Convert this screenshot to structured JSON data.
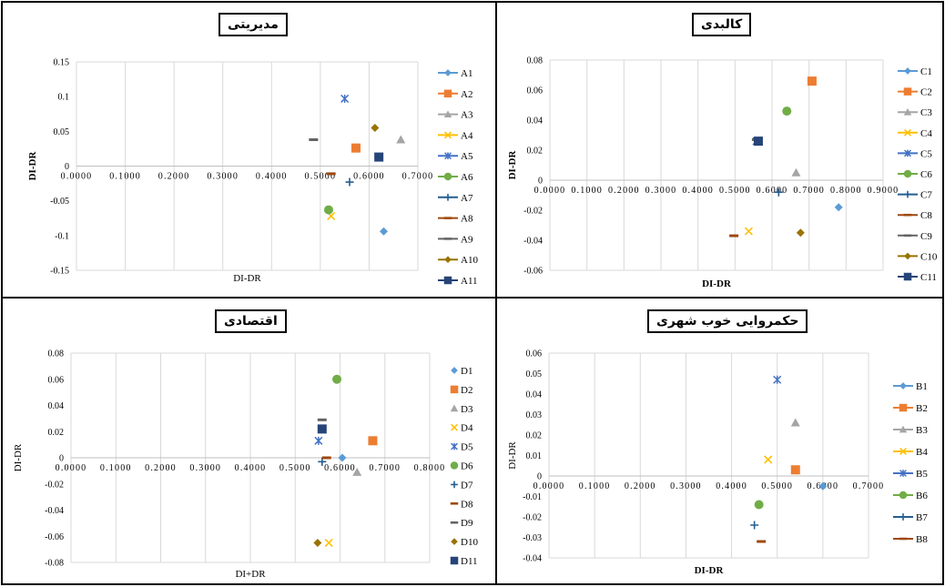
{
  "chart_data": [
    {
      "id": "tl",
      "type": "scatter",
      "title": "مدیریتی",
      "xlabel": "DI-DR",
      "ylabel": "DI-DR",
      "ylabel_bold": true,
      "xlabel_bold": false,
      "xlim": [
        0,
        0.7
      ],
      "ylim": [
        -0.15,
        0.15
      ],
      "xticks": [
        "0.0000",
        "0.1000",
        "0.2000",
        "0.3000",
        "0.4000",
        "0.5000",
        "0.6000",
        "0.7000"
      ],
      "yticks": [
        "-0.15",
        "-0.1",
        "-0.05",
        "0",
        "0.05",
        "0.1",
        "0.15"
      ],
      "grid": "vertical",
      "legend_style": "line",
      "legend_position": "right",
      "series": [
        {
          "name": "A1",
          "color": "#5B9BD5",
          "marker": "diamond",
          "x": 0.63,
          "y": -0.094
        },
        {
          "name": "A2",
          "color": "#ED7D31",
          "marker": "square",
          "x": 0.573,
          "y": 0.026
        },
        {
          "name": "A3",
          "color": "#A5A5A5",
          "marker": "triangle",
          "x": 0.665,
          "y": 0.038
        },
        {
          "name": "A4",
          "color": "#FFC000",
          "marker": "x",
          "x": 0.522,
          "y": -0.072
        },
        {
          "name": "A5",
          "color": "#4472C4",
          "marker": "asterisk",
          "x": 0.55,
          "y": 0.097
        },
        {
          "name": "A6",
          "color": "#70AD47",
          "marker": "circle",
          "x": 0.517,
          "y": -0.063
        },
        {
          "name": "A7",
          "color": "#255E91",
          "marker": "plus",
          "x": 0.56,
          "y": -0.023
        },
        {
          "name": "A8",
          "color": "#9E480E",
          "marker": "dash",
          "x": 0.522,
          "y": -0.011
        },
        {
          "name": "A9",
          "color": "#636363",
          "marker": "dash",
          "x": 0.486,
          "y": 0.038
        },
        {
          "name": "A10",
          "color": "#997300",
          "marker": "diamond",
          "x": 0.612,
          "y": 0.055
        },
        {
          "name": "A11",
          "color": "#264478",
          "marker": "square",
          "x": 0.62,
          "y": 0.013
        }
      ]
    },
    {
      "id": "tr",
      "type": "scatter",
      "title": "کالبدی",
      "xlabel": "DI-DR",
      "ylabel": "DI-DR",
      "ylabel_bold": true,
      "xlabel_bold": true,
      "xlim": [
        0,
        0.9
      ],
      "ylim": [
        -0.06,
        0.08
      ],
      "xticks": [
        "0.0000",
        "0.1000",
        "0.2000",
        "0.3000",
        "0.4000",
        "0.5000",
        "0.6000",
        "0.7000",
        "0.8000",
        "0.9000"
      ],
      "yticks": [
        "-0.06",
        "-0.04",
        "-0.02",
        "0",
        "0.02",
        "0.04",
        "0.06",
        "0.08"
      ],
      "grid": "vertical",
      "legend_style": "line",
      "legend_position": "right",
      "series": [
        {
          "name": "C1",
          "color": "#5B9BD5",
          "marker": "diamond",
          "x": 0.78,
          "y": -0.018
        },
        {
          "name": "C2",
          "color": "#ED7D31",
          "marker": "square",
          "x": 0.708,
          "y": 0.066
        },
        {
          "name": "C3",
          "color": "#A5A5A5",
          "marker": "triangle",
          "x": 0.665,
          "y": 0.005
        },
        {
          "name": "C4",
          "color": "#FFC000",
          "marker": "x",
          "x": 0.537,
          "y": -0.034
        },
        {
          "name": "C5",
          "color": "#4472C4",
          "marker": "asterisk",
          "x": 0.558,
          "y": 0.026
        },
        {
          "name": "C6",
          "color": "#70AD47",
          "marker": "circle",
          "x": 0.64,
          "y": 0.046
        },
        {
          "name": "C7",
          "color": "#255E91",
          "marker": "plus",
          "x": 0.618,
          "y": -0.008
        },
        {
          "name": "C8",
          "color": "#9E480E",
          "marker": "dash",
          "x": 0.497,
          "y": -0.037
        },
        {
          "name": "C9",
          "color": "#636363",
          "marker": "dash",
          "x": 0.558,
          "y": 0.027
        },
        {
          "name": "C10",
          "color": "#997300",
          "marker": "diamond",
          "x": 0.677,
          "y": -0.035
        },
        {
          "name": "C11",
          "color": "#264478",
          "marker": "square",
          "x": 0.563,
          "y": 0.026
        }
      ]
    },
    {
      "id": "bl",
      "type": "scatter",
      "title": "اقتصادی",
      "xlabel": "DI+DR",
      "ylabel": "DI-DR",
      "ylabel_bold": false,
      "xlabel_bold": false,
      "xlim": [
        0,
        0.8
      ],
      "ylim": [
        -0.08,
        0.08
      ],
      "xticks": [
        "0.0000",
        "0.1000",
        "0.2000",
        "0.3000",
        "0.4000",
        "0.5000",
        "0.6000",
        "0.7000",
        "0.8000"
      ],
      "yticks": [
        "-0.08",
        "-0.06",
        "-0.04",
        "-0.02",
        "0",
        "0.02",
        "0.04",
        "0.06",
        "0.08"
      ],
      "grid": "vertical",
      "legend_style": "marker",
      "legend_position": "right",
      "series": [
        {
          "name": "D1",
          "color": "#5B9BD5",
          "marker": "diamond",
          "x": 0.605,
          "y": 0.0
        },
        {
          "name": "D2",
          "color": "#ED7D31",
          "marker": "square",
          "x": 0.673,
          "y": 0.013
        },
        {
          "name": "D3",
          "color": "#A5A5A5",
          "marker": "triangle",
          "x": 0.638,
          "y": -0.011
        },
        {
          "name": "D4",
          "color": "#FFC000",
          "marker": "x",
          "x": 0.575,
          "y": -0.065
        },
        {
          "name": "D5",
          "color": "#4472C4",
          "marker": "asterisk",
          "x": 0.552,
          "y": 0.013
        },
        {
          "name": "D6",
          "color": "#70AD47",
          "marker": "circle",
          "x": 0.593,
          "y": 0.06
        },
        {
          "name": "D7",
          "color": "#255E91",
          "marker": "plus",
          "x": 0.56,
          "y": -0.003
        },
        {
          "name": "D8",
          "color": "#9E480E",
          "marker": "dash",
          "x": 0.57,
          "y": 0.0
        },
        {
          "name": "D9",
          "color": "#636363",
          "marker": "dash",
          "x": 0.56,
          "y": 0.029
        },
        {
          "name": "D10",
          "color": "#997300",
          "marker": "diamond",
          "x": 0.55,
          "y": -0.065
        },
        {
          "name": "D11",
          "color": "#264478",
          "marker": "square",
          "x": 0.56,
          "y": 0.022
        }
      ]
    },
    {
      "id": "br",
      "type": "scatter",
      "title": "حکمروایی خوب شهری",
      "xlabel": "DI-DR",
      "ylabel": "DI-DR",
      "ylabel_bold": false,
      "xlabel_bold": true,
      "xlim": [
        0,
        0.7
      ],
      "ylim": [
        -0.04,
        0.06
      ],
      "xticks": [
        "0.0000",
        "0.1000",
        "0.2000",
        "0.3000",
        "0.4000",
        "0.5000",
        "0.6000",
        "0.7000"
      ],
      "yticks": [
        "-0.04",
        "-0.03",
        "-0.02",
        "-0.01",
        "0",
        "0.01",
        "0.02",
        "0.03",
        "0.04",
        "0.05",
        "0.06"
      ],
      "grid": "vertical",
      "legend_style": "line",
      "legend_position": "right",
      "series": [
        {
          "name": "B1",
          "color": "#5B9BD5",
          "marker": "diamond",
          "x": 0.6,
          "y": -0.005
        },
        {
          "name": "B2",
          "color": "#ED7D31",
          "marker": "square",
          "x": 0.54,
          "y": 0.003
        },
        {
          "name": "B3",
          "color": "#A5A5A5",
          "marker": "triangle",
          "x": 0.54,
          "y": 0.026
        },
        {
          "name": "B4",
          "color": "#FFC000",
          "marker": "x",
          "x": 0.48,
          "y": 0.008
        },
        {
          "name": "B5",
          "color": "#4472C4",
          "marker": "asterisk",
          "x": 0.5,
          "y": 0.047
        },
        {
          "name": "B6",
          "color": "#70AD47",
          "marker": "circle",
          "x": 0.46,
          "y": -0.014
        },
        {
          "name": "B7",
          "color": "#255E91",
          "marker": "plus",
          "x": 0.45,
          "y": -0.024
        },
        {
          "name": "B8",
          "color": "#9E480E",
          "marker": "dash",
          "x": 0.465,
          "y": -0.032
        }
      ]
    }
  ]
}
